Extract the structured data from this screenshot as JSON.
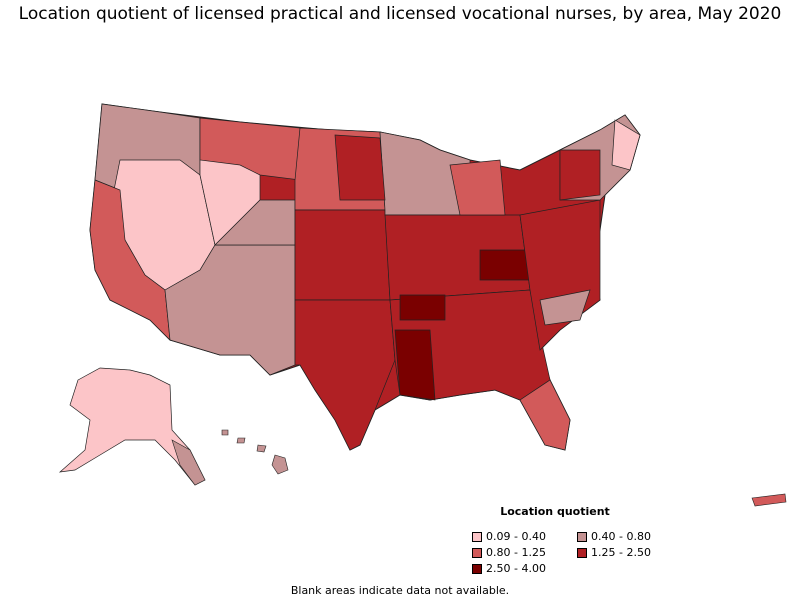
{
  "title": "Location quotient of licensed practical and licensed vocational nurses, by area, May 2020",
  "legend": {
    "title": "Location quotient",
    "items": [
      {
        "label": "0.09 - 0.40",
        "color": "#fcc5c8"
      },
      {
        "label": "0.40 - 0.80",
        "color": "#c49393"
      },
      {
        "label": "0.80 - 1.25",
        "color": "#d25a5a"
      },
      {
        "label": "1.25 - 2.50",
        "color": "#b02024"
      },
      {
        "label": "2.50 - 4.00",
        "color": "#7a0000"
      }
    ]
  },
  "footnote": "Blank areas indicate data not available."
}
